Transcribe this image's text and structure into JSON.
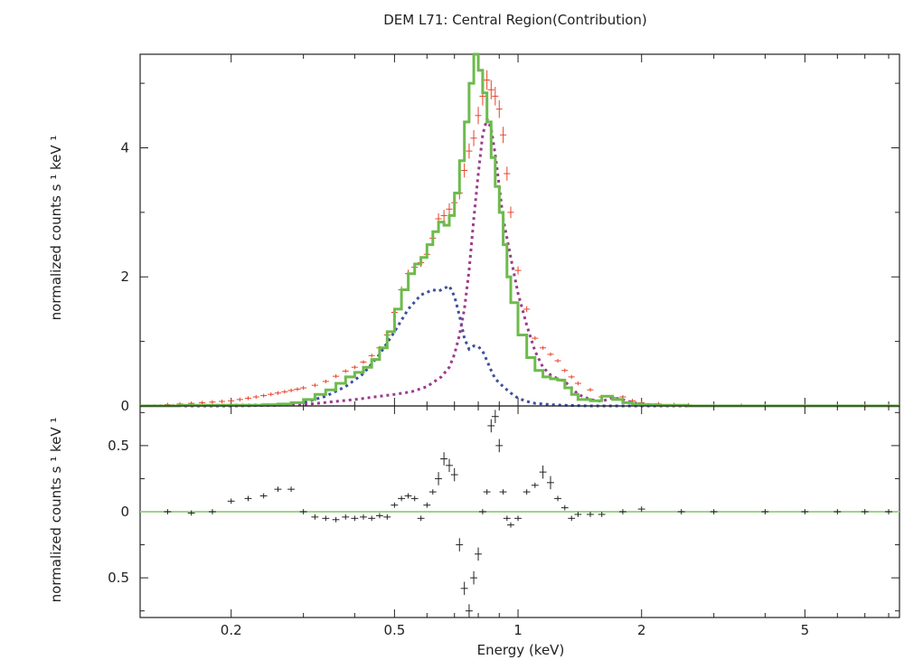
{
  "chart_data": [
    {
      "type": "line",
      "title": "DEM L71: Central Region(Contribution)",
      "ylabel": "normalized counts s ¹ keV ¹",
      "x_scale": "log",
      "xlim": [
        0.12,
        8.5
      ],
      "ylim": [
        0,
        5.45
      ],
      "yticks": [
        "0",
        "2",
        "4"
      ],
      "colors": {
        "data": "#e8432a",
        "model": "#6dbb4c",
        "component1": "#3d4f9e",
        "component2": "#9b3b8c"
      },
      "series": [
        {
          "style": "error-bars",
          "x": [
            0.14,
            0.15,
            0.16,
            0.17,
            0.18,
            0.19,
            0.2,
            0.21,
            0.22,
            0.23,
            0.24,
            0.25,
            0.26,
            0.27,
            0.28,
            0.29,
            0.3,
            0.32,
            0.34,
            0.36,
            0.38,
            0.4,
            0.42,
            0.44,
            0.46,
            0.48,
            0.5,
            0.52,
            0.54,
            0.56,
            0.58,
            0.6,
            0.62,
            0.64,
            0.66,
            0.68,
            0.7,
            0.72,
            0.74,
            0.76,
            0.78,
            0.8,
            0.82,
            0.84,
            0.86,
            0.88,
            0.9,
            0.92,
            0.94,
            0.96,
            1.0,
            1.05,
            1.1,
            1.15,
            1.2,
            1.25,
            1.3,
            1.35,
            1.4,
            1.5,
            1.6,
            1.7,
            1.8,
            1.9,
            2.0,
            2.2,
            2.4,
            2.6,
            3.0,
            3.5,
            4.0,
            5.0,
            6.0,
            7.0,
            8.0
          ],
          "values": [
            0.02,
            0.03,
            0.04,
            0.05,
            0.06,
            0.07,
            0.08,
            0.1,
            0.12,
            0.14,
            0.16,
            0.18,
            0.2,
            0.22,
            0.24,
            0.26,
            0.28,
            0.32,
            0.38,
            0.46,
            0.54,
            0.6,
            0.68,
            0.78,
            0.9,
            1.1,
            1.45,
            1.8,
            2.05,
            2.15,
            2.22,
            2.35,
            2.6,
            2.9,
            2.95,
            3.05,
            3.15,
            3.3,
            3.65,
            3.95,
            4.15,
            4.5,
            4.8,
            5.05,
            4.9,
            4.8,
            4.6,
            4.2,
            3.6,
            3.0,
            2.1,
            1.5,
            1.05,
            0.9,
            0.8,
            0.7,
            0.55,
            0.45,
            0.35,
            0.25,
            0.14,
            0.13,
            0.14,
            0.08,
            0.05,
            0.03,
            0.02,
            0.015,
            0.01,
            0.008,
            0.006,
            0.004,
            0.003,
            0.002,
            0.002
          ]
        },
        {
          "style": "step",
          "x": [
            0.12,
            0.15,
            0.18,
            0.2,
            0.22,
            0.24,
            0.26,
            0.28,
            0.3,
            0.32,
            0.34,
            0.36,
            0.38,
            0.4,
            0.42,
            0.44,
            0.46,
            0.48,
            0.5,
            0.52,
            0.54,
            0.56,
            0.58,
            0.6,
            0.62,
            0.64,
            0.66,
            0.68,
            0.7,
            0.72,
            0.74,
            0.76,
            0.78,
            0.8,
            0.82,
            0.84,
            0.86,
            0.88,
            0.9,
            0.92,
            0.94,
            0.96,
            1.0,
            1.05,
            1.1,
            1.15,
            1.2,
            1.25,
            1.3,
            1.35,
            1.4,
            1.5,
            1.6,
            1.7,
            1.8,
            1.9,
            2.0,
            2.2,
            2.4,
            2.6,
            3.0,
            3.5,
            4.0,
            5.0,
            6.0,
            7.0,
            8.5
          ],
          "values": [
            0.0,
            0.01,
            0.01,
            0.01,
            0.01,
            0.02,
            0.03,
            0.05,
            0.1,
            0.18,
            0.25,
            0.35,
            0.45,
            0.52,
            0.6,
            0.72,
            0.9,
            1.15,
            1.5,
            1.8,
            2.05,
            2.2,
            2.3,
            2.5,
            2.7,
            2.85,
            2.8,
            2.95,
            3.3,
            3.8,
            4.4,
            5.0,
            5.45,
            5.2,
            4.85,
            4.4,
            3.85,
            3.4,
            3.0,
            2.5,
            2.0,
            1.6,
            1.1,
            0.75,
            0.55,
            0.45,
            0.42,
            0.4,
            0.28,
            0.18,
            0.1,
            0.08,
            0.15,
            0.1,
            0.05,
            0.03,
            0.02,
            0.01,
            0.01,
            0.0,
            0.0,
            0.0,
            0.0,
            0.0,
            0.0,
            0.0,
            0.0
          ]
        },
        {
          "style": "dashed",
          "x": [
            0.12,
            0.2,
            0.26,
            0.3,
            0.34,
            0.38,
            0.42,
            0.46,
            0.5,
            0.54,
            0.58,
            0.62,
            0.64,
            0.66,
            0.68,
            0.7,
            0.72,
            0.74,
            0.76,
            0.78,
            0.8,
            0.82,
            0.84,
            0.86,
            0.88,
            0.92,
            0.96,
            1.0,
            1.05,
            1.1,
            1.2,
            1.3,
            1.5,
            2.0,
            3.0,
            8.5
          ],
          "values": [
            0.0,
            0.0,
            0.01,
            0.05,
            0.15,
            0.3,
            0.5,
            0.8,
            1.15,
            1.5,
            1.72,
            1.8,
            1.78,
            1.82,
            1.86,
            1.7,
            1.4,
            1.05,
            0.88,
            0.93,
            0.92,
            0.85,
            0.7,
            0.55,
            0.42,
            0.3,
            0.2,
            0.12,
            0.07,
            0.04,
            0.02,
            0.01,
            0.0,
            0.0,
            0.0,
            0.0
          ]
        },
        {
          "style": "dashed",
          "x": [
            0.12,
            0.3,
            0.4,
            0.5,
            0.55,
            0.6,
            0.65,
            0.68,
            0.7,
            0.72,
            0.74,
            0.76,
            0.78,
            0.8,
            0.82,
            0.84,
            0.86,
            0.88,
            0.9,
            0.92,
            0.96,
            1.0,
            1.05,
            1.1,
            1.15,
            1.2,
            1.25,
            1.3,
            1.35,
            1.4,
            1.5,
            1.6,
            1.7,
            1.8,
            1.9,
            2.0,
            2.2,
            2.5,
            3.0,
            8.5
          ],
          "values": [
            0.0,
            0.02,
            0.1,
            0.18,
            0.22,
            0.3,
            0.45,
            0.6,
            0.8,
            1.1,
            1.5,
            2.1,
            2.9,
            3.6,
            4.2,
            4.45,
            4.3,
            3.9,
            3.4,
            2.9,
            2.3,
            1.75,
            1.25,
            0.85,
            0.6,
            0.48,
            0.42,
            0.38,
            0.28,
            0.18,
            0.1,
            0.07,
            0.13,
            0.1,
            0.05,
            0.03,
            0.01,
            0.0,
            0.0,
            0.0
          ]
        }
      ]
    },
    {
      "type": "scatter",
      "xlabel": "Energy (keV)",
      "ylabel": "normalized counts s ¹ keV ¹",
      "x_scale": "log",
      "xlim": [
        0.12,
        8.5
      ],
      "ylim": [
        -0.8,
        0.8
      ],
      "xticks": [
        "0.2",
        "0.5",
        "1",
        "2",
        "5"
      ],
      "yticks": [
        "0.5",
        "0",
        "0.5"
      ],
      "colors": {
        "points": "#222222",
        "zero_line": "#9ed48a"
      },
      "series": [
        {
          "style": "error-bars",
          "x": [
            0.14,
            0.16,
            0.18,
            0.2,
            0.22,
            0.24,
            0.26,
            0.28,
            0.3,
            0.32,
            0.34,
            0.36,
            0.38,
            0.4,
            0.42,
            0.44,
            0.46,
            0.48,
            0.5,
            0.52,
            0.54,
            0.56,
            0.58,
            0.6,
            0.62,
            0.64,
            0.66,
            0.68,
            0.7,
            0.72,
            0.74,
            0.76,
            0.78,
            0.8,
            0.82,
            0.84,
            0.86,
            0.88,
            0.9,
            0.92,
            0.94,
            0.96,
            1.0,
            1.05,
            1.1,
            1.15,
            1.2,
            1.25,
            1.3,
            1.35,
            1.4,
            1.5,
            1.6,
            1.8,
            2.0,
            2.5,
            3.0,
            4.0,
            5.0,
            6.0,
            7.0,
            8.0
          ],
          "values": [
            0.0,
            -0.01,
            0.0,
            0.08,
            0.1,
            0.12,
            0.17,
            0.17,
            0.0,
            -0.04,
            -0.05,
            -0.06,
            -0.04,
            -0.05,
            -0.04,
            -0.05,
            -0.03,
            -0.04,
            0.05,
            0.1,
            0.12,
            0.1,
            -0.05,
            0.05,
            0.15,
            0.25,
            0.4,
            0.35,
            0.28,
            -0.25,
            -0.58,
            -0.75,
            -0.5,
            -0.32,
            0.0,
            0.15,
            0.65,
            0.72,
            0.5,
            0.15,
            -0.05,
            -0.1,
            -0.05,
            0.15,
            0.2,
            0.3,
            0.22,
            0.1,
            0.03,
            -0.05,
            -0.02,
            -0.02,
            -0.02,
            0.0,
            0.02,
            0.0,
            0.0,
            0.0,
            0.0,
            0.0,
            0.0,
            0.0
          ]
        }
      ]
    }
  ]
}
